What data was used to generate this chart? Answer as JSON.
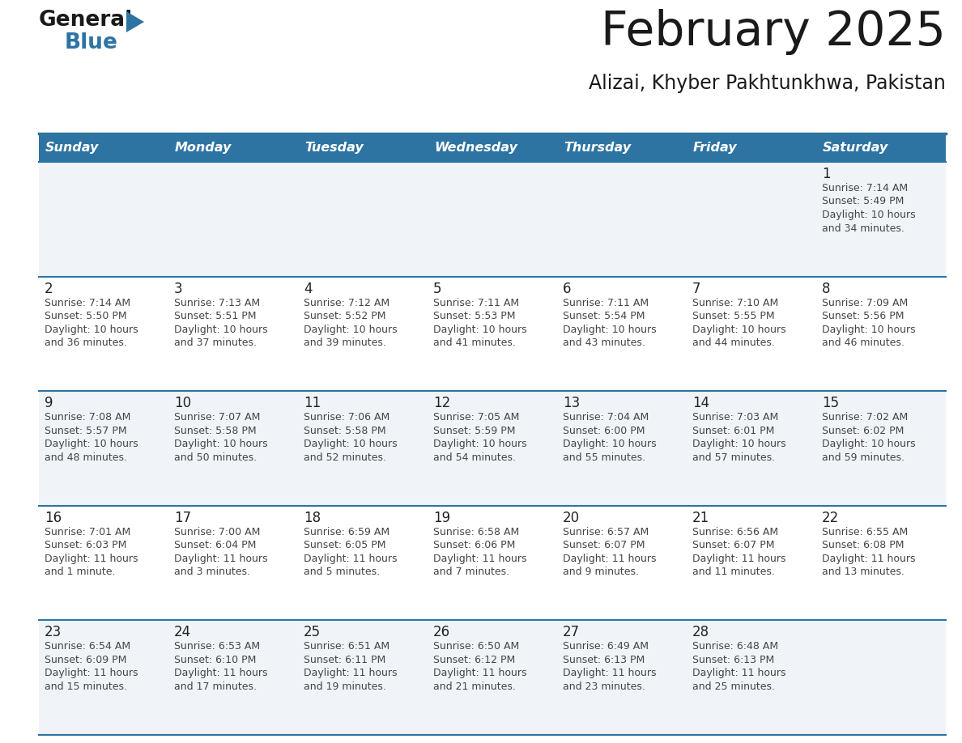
{
  "title": "February 2025",
  "subtitle": "Alizai, Khyber Pakhtunkhwa, Pakistan",
  "header_bg": "#2e74a3",
  "header_text": "#ffffff",
  "cell_bg_even": "#f0f4f8",
  "cell_bg_odd": "#ffffff",
  "cell_text": "#333333",
  "divider_color": "#2e74a3",
  "days_of_week": [
    "Sunday",
    "Monday",
    "Tuesday",
    "Wednesday",
    "Thursday",
    "Friday",
    "Saturday"
  ],
  "calendar_data": [
    [
      null,
      null,
      null,
      null,
      null,
      null,
      {
        "day": 1,
        "sunrise": "7:14 AM",
        "sunset": "5:49 PM",
        "daylight_line1": "Daylight: 10 hours",
        "daylight_line2": "and 34 minutes."
      }
    ],
    [
      {
        "day": 2,
        "sunrise": "7:14 AM",
        "sunset": "5:50 PM",
        "daylight_line1": "Daylight: 10 hours",
        "daylight_line2": "and 36 minutes."
      },
      {
        "day": 3,
        "sunrise": "7:13 AM",
        "sunset": "5:51 PM",
        "daylight_line1": "Daylight: 10 hours",
        "daylight_line2": "and 37 minutes."
      },
      {
        "day": 4,
        "sunrise": "7:12 AM",
        "sunset": "5:52 PM",
        "daylight_line1": "Daylight: 10 hours",
        "daylight_line2": "and 39 minutes."
      },
      {
        "day": 5,
        "sunrise": "7:11 AM",
        "sunset": "5:53 PM",
        "daylight_line1": "Daylight: 10 hours",
        "daylight_line2": "and 41 minutes."
      },
      {
        "day": 6,
        "sunrise": "7:11 AM",
        "sunset": "5:54 PM",
        "daylight_line1": "Daylight: 10 hours",
        "daylight_line2": "and 43 minutes."
      },
      {
        "day": 7,
        "sunrise": "7:10 AM",
        "sunset": "5:55 PM",
        "daylight_line1": "Daylight: 10 hours",
        "daylight_line2": "and 44 minutes."
      },
      {
        "day": 8,
        "sunrise": "7:09 AM",
        "sunset": "5:56 PM",
        "daylight_line1": "Daylight: 10 hours",
        "daylight_line2": "and 46 minutes."
      }
    ],
    [
      {
        "day": 9,
        "sunrise": "7:08 AM",
        "sunset": "5:57 PM",
        "daylight_line1": "Daylight: 10 hours",
        "daylight_line2": "and 48 minutes."
      },
      {
        "day": 10,
        "sunrise": "7:07 AM",
        "sunset": "5:58 PM",
        "daylight_line1": "Daylight: 10 hours",
        "daylight_line2": "and 50 minutes."
      },
      {
        "day": 11,
        "sunrise": "7:06 AM",
        "sunset": "5:58 PM",
        "daylight_line1": "Daylight: 10 hours",
        "daylight_line2": "and 52 minutes."
      },
      {
        "day": 12,
        "sunrise": "7:05 AM",
        "sunset": "5:59 PM",
        "daylight_line1": "Daylight: 10 hours",
        "daylight_line2": "and 54 minutes."
      },
      {
        "day": 13,
        "sunrise": "7:04 AM",
        "sunset": "6:00 PM",
        "daylight_line1": "Daylight: 10 hours",
        "daylight_line2": "and 55 minutes."
      },
      {
        "day": 14,
        "sunrise": "7:03 AM",
        "sunset": "6:01 PM",
        "daylight_line1": "Daylight: 10 hours",
        "daylight_line2": "and 57 minutes."
      },
      {
        "day": 15,
        "sunrise": "7:02 AM",
        "sunset": "6:02 PM",
        "daylight_line1": "Daylight: 10 hours",
        "daylight_line2": "and 59 minutes."
      }
    ],
    [
      {
        "day": 16,
        "sunrise": "7:01 AM",
        "sunset": "6:03 PM",
        "daylight_line1": "Daylight: 11 hours",
        "daylight_line2": "and 1 minute."
      },
      {
        "day": 17,
        "sunrise": "7:00 AM",
        "sunset": "6:04 PM",
        "daylight_line1": "Daylight: 11 hours",
        "daylight_line2": "and 3 minutes."
      },
      {
        "day": 18,
        "sunrise": "6:59 AM",
        "sunset": "6:05 PM",
        "daylight_line1": "Daylight: 11 hours",
        "daylight_line2": "and 5 minutes."
      },
      {
        "day": 19,
        "sunrise": "6:58 AM",
        "sunset": "6:06 PM",
        "daylight_line1": "Daylight: 11 hours",
        "daylight_line2": "and 7 minutes."
      },
      {
        "day": 20,
        "sunrise": "6:57 AM",
        "sunset": "6:07 PM",
        "daylight_line1": "Daylight: 11 hours",
        "daylight_line2": "and 9 minutes."
      },
      {
        "day": 21,
        "sunrise": "6:56 AM",
        "sunset": "6:07 PM",
        "daylight_line1": "Daylight: 11 hours",
        "daylight_line2": "and 11 minutes."
      },
      {
        "day": 22,
        "sunrise": "6:55 AM",
        "sunset": "6:08 PM",
        "daylight_line1": "Daylight: 11 hours",
        "daylight_line2": "and 13 minutes."
      }
    ],
    [
      {
        "day": 23,
        "sunrise": "6:54 AM",
        "sunset": "6:09 PM",
        "daylight_line1": "Daylight: 11 hours",
        "daylight_line2": "and 15 minutes."
      },
      {
        "day": 24,
        "sunrise": "6:53 AM",
        "sunset": "6:10 PM",
        "daylight_line1": "Daylight: 11 hours",
        "daylight_line2": "and 17 minutes."
      },
      {
        "day": 25,
        "sunrise": "6:51 AM",
        "sunset": "6:11 PM",
        "daylight_line1": "Daylight: 11 hours",
        "daylight_line2": "and 19 minutes."
      },
      {
        "day": 26,
        "sunrise": "6:50 AM",
        "sunset": "6:12 PM",
        "daylight_line1": "Daylight: 11 hours",
        "daylight_line2": "and 21 minutes."
      },
      {
        "day": 27,
        "sunrise": "6:49 AM",
        "sunset": "6:13 PM",
        "daylight_line1": "Daylight: 11 hours",
        "daylight_line2": "and 23 minutes."
      },
      {
        "day": 28,
        "sunrise": "6:48 AM",
        "sunset": "6:13 PM",
        "daylight_line1": "Daylight: 11 hours",
        "daylight_line2": "and 25 minutes."
      },
      null
    ]
  ]
}
